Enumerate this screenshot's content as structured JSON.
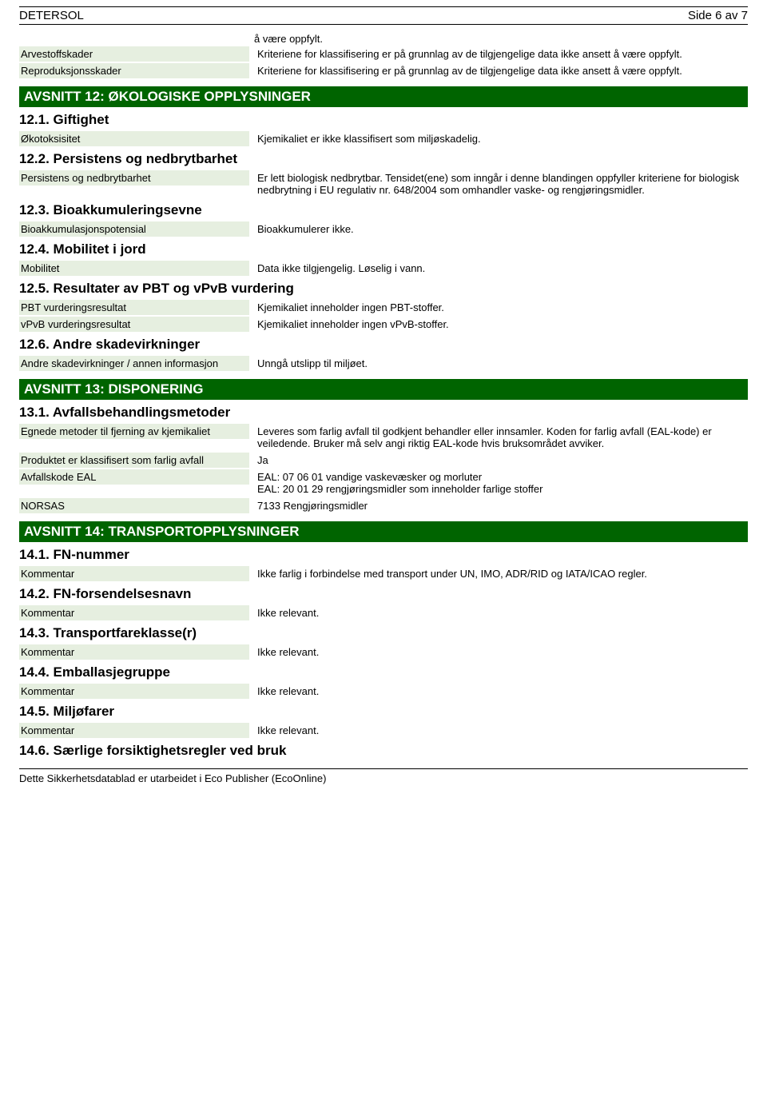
{
  "header": {
    "product": "DETERSOL",
    "page": "Side 6 av 7"
  },
  "intro": {
    "line1": "å være oppfylt.",
    "arvestoff_label": "Arvestoffskader",
    "arvestoff_value": "Kriteriene for klassifisering er på grunnlag av de tilgjengelige data ikke ansett å være oppfylt.",
    "repro_label": "Reproduksjonsskader",
    "repro_value": "Kriteriene for klassifisering er på grunnlag av de tilgjengelige data ikke ansett å være oppfylt."
  },
  "s12": {
    "title": "AVSNITT 12: ØKOLOGISKE OPPLYSNINGER",
    "s1": {
      "heading": "12.1. Giftighet",
      "okotoks_label": "Økotoksisitet",
      "okotoks_value": "Kjemikaliet er ikke klassifisert som miljøskadelig."
    },
    "s2": {
      "heading": "12.2. Persistens og nedbrytbarhet",
      "pers_label": "Persistens og nedbrytbarhet",
      "pers_value": "Er lett biologisk nedbrytbar. Tensidet(ene) som inngår i denne blandingen oppfyller kriteriene for biologisk nedbrytning i EU regulativ nr. 648/2004 som omhandler vaske- og rengjøringsmidler."
    },
    "s3": {
      "heading": "12.3. Bioakkumuleringsevne",
      "bio_label": "Bioakkumulasjonspotensial",
      "bio_value": "Bioakkumulerer ikke."
    },
    "s4": {
      "heading": "12.4. Mobilitet i jord",
      "mob_label": "Mobilitet",
      "mob_value": "Data ikke tilgjengelig. Løselig i vann."
    },
    "s5": {
      "heading": "12.5. Resultater av PBT og vPvB vurdering",
      "pbt_label": "PBT vurderingsresultat",
      "pbt_value": "Kjemikaliet inneholder ingen PBT-stoffer.",
      "vpvb_label": "vPvB vurderingsresultat",
      "vpvb_value": "Kjemikaliet inneholder ingen vPvB-stoffer."
    },
    "s6": {
      "heading": "12.6. Andre skadevirkninger",
      "andre_label": "Andre skadevirkninger / annen informasjon",
      "andre_value": "Unngå utslipp til miljøet."
    }
  },
  "s13": {
    "title": "AVSNITT 13: DISPONERING",
    "s1": {
      "heading": "13.1. Avfallsbehandlingsmetoder",
      "egnede_label": "Egnede metoder til fjerning av kjemikaliet",
      "egnede_value": "Leveres som farlig avfall til godkjent behandler eller innsamler. Koden for farlig avfall (EAL-kode) er veiledende. Bruker må selv angi riktig EAL-kode hvis bruksområdet avviker.",
      "klass_label": "Produktet er klassifisert som farlig avfall",
      "klass_value": "Ja",
      "eal_label": "Avfallskode EAL",
      "eal_value1": "EAL: 07 06 01 vandige vaskevæsker og morluter",
      "eal_value2": "EAL: 20 01 29 rengjøringsmidler som inneholder farlige stoffer",
      "norsas_label": "NORSAS",
      "norsas_value": "7133 Rengjøringsmidler"
    }
  },
  "s14": {
    "title": "AVSNITT 14: TRANSPORTOPPLYSNINGER",
    "s1": {
      "heading": "14.1. FN-nummer",
      "komm_label": "Kommentar",
      "komm_value": "Ikke farlig i forbindelse med transport under UN, IMO, ADR/RID og IATA/ICAO regler."
    },
    "s2": {
      "heading": "14.2. FN-forsendelsesnavn",
      "komm_label": "Kommentar",
      "komm_value": "Ikke relevant."
    },
    "s3": {
      "heading": "14.3. Transportfareklasse(r)",
      "komm_label": "Kommentar",
      "komm_value": "Ikke relevant."
    },
    "s4": {
      "heading": "14.4. Emballasjegruppe",
      "komm_label": "Kommentar",
      "komm_value": "Ikke relevant."
    },
    "s5": {
      "heading": "14.5. Miljøfarer",
      "komm_label": "Kommentar",
      "komm_value": "Ikke relevant."
    },
    "s6": {
      "heading": "14.6. Særlige forsiktighetsregler ved bruk"
    }
  },
  "footer": {
    "text": "Dette Sikkerhetsdatablad er utarbeidet i Eco Publisher (EcoOnline)"
  }
}
